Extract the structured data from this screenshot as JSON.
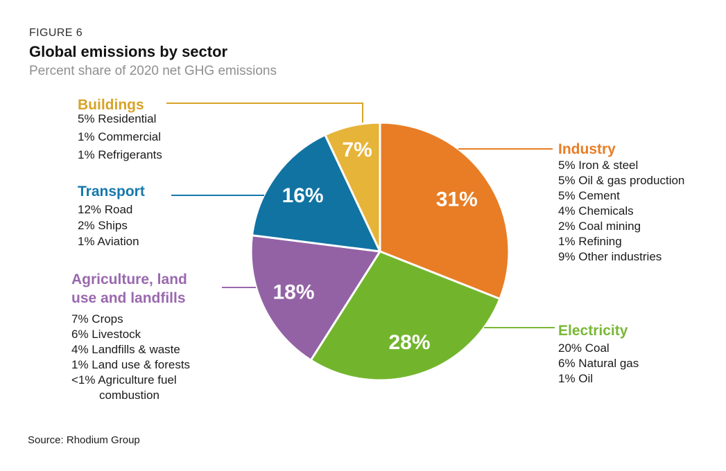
{
  "header": {
    "figure_label": "FIGURE 6",
    "title": "Global emissions by sector",
    "subtitle": "Percent share of 2020 net GHG emissions"
  },
  "source": "Source: Rhodium Group",
  "chart_data": {
    "type": "pie",
    "title": "Global emissions by sector",
    "subtitle": "Percent share of 2020 net GHG emissions",
    "units": "percent of 2020 net GHG emissions",
    "total": 100,
    "start_angle_deg": 0,
    "direction": "clockwise",
    "slices": [
      {
        "id": "industry",
        "name": "Industry",
        "value": 31,
        "label": "31%",
        "color": "#e87d25",
        "heading_color": "#e87d25",
        "label_r": 0.72,
        "breakdown": [
          "5% Iron & steel",
          "5% Oil & gas production",
          "5% Cement",
          "4% Chemicals",
          "2% Coal mining",
          "1% Refining",
          "9% Other industries"
        ]
      },
      {
        "id": "electricity",
        "name": "Electricity",
        "value": 28,
        "label": "28%",
        "color": "#72b52d",
        "heading_color": "#79b836",
        "label_r": 0.74,
        "breakdown": [
          "20% Coal",
          "6% Natural gas",
          "1% Oil"
        ]
      },
      {
        "id": "agriculture",
        "name": "Agriculture, land use and landfills",
        "value": 18,
        "label": "18%",
        "color": "#9362a4",
        "heading_color": "#9a68ae",
        "label_r": 0.74,
        "breakdown": [
          "7% Crops",
          "6% Livestock",
          "4% Landfills & waste",
          "1% Land use & forests",
          "<1% Agriculture fuel combustion"
        ]
      },
      {
        "id": "transport",
        "name": "Transport",
        "value": 16,
        "label": "16%",
        "color": "#1173a2",
        "heading_color": "#1578ab",
        "label_r": 0.74,
        "breakdown": [
          "12% Road",
          "2% Ships",
          "1% Aviation"
        ]
      },
      {
        "id": "buildings",
        "name": "Buildings",
        "value": 7,
        "label": "7%",
        "color": "#e6b438",
        "heading_color": "#d7a327",
        "label_r": 0.81,
        "breakdown": [
          "5% Residential",
          "1% Commercial",
          "1% Refrigerants"
        ]
      }
    ]
  }
}
